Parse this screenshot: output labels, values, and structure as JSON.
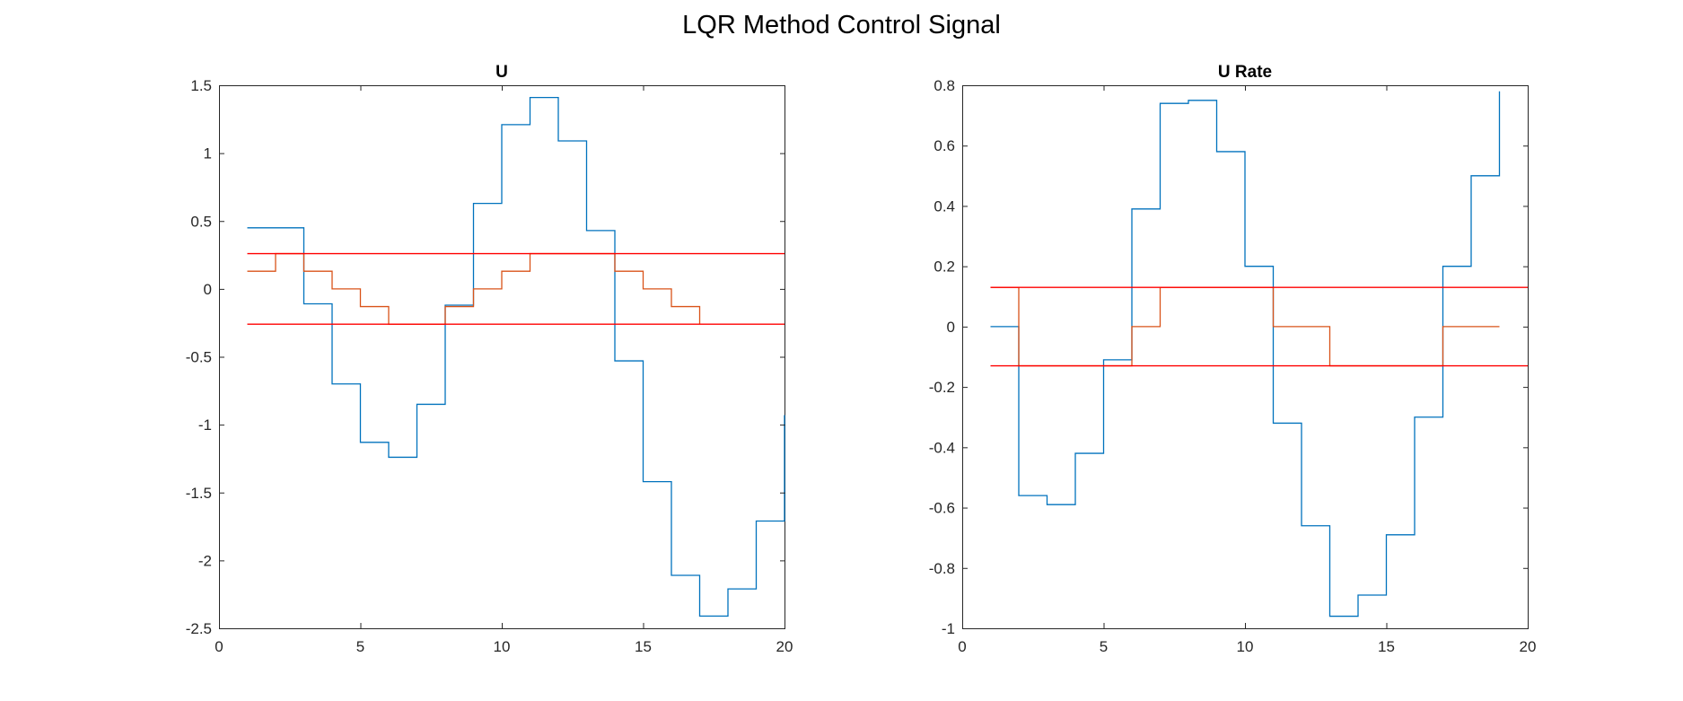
{
  "figure": {
    "title": "LQR Method Control Signal"
  },
  "colors": {
    "blue": "#0072BD",
    "orange": "#D95319",
    "red": "#FF0000"
  },
  "chart_data": [
    {
      "type": "line",
      "title": "U",
      "xlabel": "",
      "ylabel": "",
      "xlim": [
        0,
        20
      ],
      "ylim": [
        -2.5,
        1.5
      ],
      "xticks": [
        0,
        5,
        10,
        15,
        20
      ],
      "yticks": [
        -2.5,
        -2,
        -1.5,
        -1,
        -0.5,
        0,
        0.5,
        1,
        1.5
      ],
      "xtick_labels": [
        "0",
        "5",
        "10",
        "15",
        "20"
      ],
      "ytick_labels": [
        "-2.5",
        "-2",
        "-1.5",
        "-1",
        "-0.5",
        "0",
        "0.5",
        "1",
        "1.5"
      ],
      "grid": false,
      "series": [
        {
          "style": "stairs",
          "color": "blue",
          "x": [
            1,
            2,
            3,
            4,
            5,
            6,
            7,
            8,
            9,
            10,
            11,
            12,
            13,
            14,
            15,
            16,
            17,
            18,
            19,
            20
          ],
          "y": [
            0.45,
            0.45,
            -0.11,
            -0.7,
            -1.13,
            -1.24,
            -0.85,
            -0.12,
            0.63,
            1.21,
            1.41,
            1.09,
            0.43,
            -0.53,
            -1.42,
            -2.11,
            -2.41,
            -2.21,
            -1.71,
            -0.93
          ]
        },
        {
          "style": "stairs",
          "color": "orange",
          "x": [
            1,
            2,
            3,
            4,
            5,
            6,
            7,
            8,
            9,
            10,
            11,
            12,
            13,
            14,
            15,
            16,
            17
          ],
          "y": [
            0.13,
            0.26,
            0.13,
            0,
            -0.13,
            -0.26,
            -0.26,
            -0.13,
            0,
            0.13,
            0.26,
            0.26,
            0.26,
            0.13,
            0,
            -0.13,
            -0.26
          ]
        },
        {
          "style": "line",
          "color": "red",
          "x": [
            1,
            20
          ],
          "y": [
            0.26,
            0.26
          ]
        },
        {
          "style": "line",
          "color": "red",
          "x": [
            1,
            20
          ],
          "y": [
            -0.26,
            -0.26
          ]
        }
      ]
    },
    {
      "type": "line",
      "title": "U Rate",
      "xlabel": "",
      "ylabel": "",
      "xlim": [
        0,
        20
      ],
      "ylim": [
        -1,
        0.8
      ],
      "xticks": [
        0,
        5,
        10,
        15,
        20
      ],
      "yticks": [
        -1,
        -0.8,
        -0.6,
        -0.4,
        -0.2,
        0,
        0.2,
        0.4,
        0.6,
        0.8
      ],
      "xtick_labels": [
        "0",
        "5",
        "10",
        "15",
        "20"
      ],
      "ytick_labels": [
        "-1",
        "-0.8",
        "-0.6",
        "-0.4",
        "-0.2",
        "0",
        "0.2",
        "0.4",
        "0.6",
        "0.8"
      ],
      "grid": false,
      "series": [
        {
          "style": "stairs",
          "color": "blue",
          "x": [
            1,
            2,
            3,
            4,
            5,
            6,
            7,
            8,
            9,
            10,
            11,
            12,
            13,
            14,
            15,
            16,
            17,
            18,
            19
          ],
          "y": [
            0,
            -0.56,
            -0.59,
            -0.42,
            -0.11,
            0.39,
            0.74,
            0.75,
            0.58,
            0.2,
            -0.32,
            -0.66,
            -0.96,
            -0.89,
            -0.69,
            -0.3,
            0.2,
            0.5,
            0.78
          ]
        },
        {
          "style": "stairs",
          "color": "orange",
          "x": [
            1,
            2,
            3,
            4,
            5,
            6,
            7,
            8,
            9,
            10,
            11,
            12,
            13,
            14,
            15,
            16,
            17,
            18,
            19
          ],
          "y": [
            0.13,
            -0.13,
            -0.13,
            -0.13,
            -0.13,
            0,
            0.13,
            0.13,
            0.13,
            0.13,
            0,
            0,
            -0.13,
            -0.13,
            -0.13,
            -0.13,
            0,
            0,
            0
          ]
        },
        {
          "style": "line",
          "color": "red",
          "x": [
            1,
            20
          ],
          "y": [
            0.13,
            0.13
          ]
        },
        {
          "style": "line",
          "color": "red",
          "x": [
            1,
            20
          ],
          "y": [
            -0.13,
            -0.13
          ]
        }
      ]
    }
  ]
}
